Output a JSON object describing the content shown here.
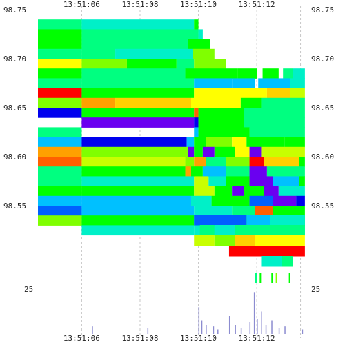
{
  "chart_data": {
    "type": "heatmap",
    "title": "",
    "xlabel": "",
    "ylabel": "",
    "x_ticks": [
      "13:51:06",
      "13:51:08",
      "13:51:10",
      "13:51:12"
    ],
    "y_ticks": [
      "98.75",
      "98.70",
      "98.65",
      "98.60",
      "98.55"
    ],
    "volume_tick": "25",
    "x_range_seconds": [
      4.55,
      13.75
    ],
    "y_range": [
      98.535,
      98.755
    ],
    "grid": true,
    "palette": [
      "#0000ee",
      "#6a00f0",
      "#0060ff",
      "#00c0ff",
      "#00f0c8",
      "#00ff80",
      "#00ff00",
      "#80ff00",
      "#c8ff00",
      "#ffff00",
      "#ffd000",
      "#ffa000",
      "#ff6000",
      "#ff0000"
    ],
    "rows": [
      {
        "price": 98.745,
        "segs": [
          [
            4.55,
            6.05,
            5
          ],
          [
            6.05,
            9.9,
            4
          ],
          [
            9.9,
            10.05,
            6
          ]
        ]
      },
      {
        "price": 98.735,
        "segs": [
          [
            4.55,
            6.05,
            6
          ],
          [
            6.05,
            10.05,
            5
          ],
          [
            10.05,
            10.2,
            4
          ]
        ]
      },
      {
        "price": 98.725,
        "segs": [
          [
            4.55,
            6.05,
            6
          ],
          [
            6.05,
            9.7,
            5
          ],
          [
            9.7,
            10.45,
            6
          ]
        ]
      },
      {
        "price": 98.715,
        "segs": [
          [
            4.55,
            6.05,
            5
          ],
          [
            6.05,
            7.2,
            5
          ],
          [
            7.2,
            9.85,
            4
          ],
          [
            9.85,
            10.6,
            7
          ]
        ]
      },
      {
        "price": 98.705,
        "segs": [
          [
            4.55,
            6.05,
            9
          ],
          [
            6.05,
            7.6,
            7
          ],
          [
            7.6,
            9.3,
            6
          ],
          [
            9.3,
            9.9,
            5
          ],
          [
            9.9,
            11.0,
            7
          ]
        ]
      },
      {
        "price": 98.695,
        "segs": [
          [
            4.55,
            6.05,
            6
          ],
          [
            6.05,
            9.6,
            5
          ],
          [
            9.6,
            11.4,
            6
          ],
          [
            11.4,
            12.05,
            6
          ],
          [
            12.25,
            12.8,
            6
          ],
          [
            12.95,
            13.3,
            5
          ],
          [
            13.3,
            13.7,
            4
          ]
        ]
      },
      {
        "price": 98.685,
        "segs": [
          [
            4.55,
            6.05,
            5
          ],
          [
            6.05,
            9.9,
            5
          ],
          [
            9.9,
            11.2,
            3
          ],
          [
            11.2,
            12.0,
            3
          ],
          [
            12.1,
            13.2,
            3
          ],
          [
            13.2,
            13.7,
            4
          ]
        ]
      },
      {
        "price": 98.675,
        "segs": [
          [
            4.55,
            6.05,
            13
          ],
          [
            6.05,
            9.9,
            6
          ],
          [
            9.9,
            11.3,
            9
          ],
          [
            11.3,
            12.4,
            9
          ],
          [
            12.4,
            13.2,
            10
          ],
          [
            13.2,
            13.7,
            8
          ]
        ]
      },
      {
        "price": 98.665,
        "segs": [
          [
            4.55,
            6.05,
            7
          ],
          [
            6.05,
            7.2,
            11
          ],
          [
            7.2,
            9.8,
            10
          ],
          [
            9.8,
            11.5,
            9
          ],
          [
            11.5,
            12.2,
            6
          ],
          [
            12.2,
            13.7,
            5
          ]
        ]
      },
      {
        "price": 98.655,
        "segs": [
          [
            4.55,
            6.05,
            0
          ],
          [
            6.05,
            9.9,
            6
          ],
          [
            9.9,
            10.05,
            12
          ],
          [
            10.05,
            11.6,
            6
          ],
          [
            11.6,
            12.6,
            5
          ],
          [
            12.6,
            13.7,
            5
          ]
        ]
      },
      {
        "price": 98.645,
        "segs": [
          [
            6.05,
            9.9,
            1
          ],
          [
            9.9,
            10.05,
            0
          ],
          [
            10.05,
            11.6,
            6
          ],
          [
            11.6,
            13.7,
            5
          ]
        ]
      },
      {
        "price": 98.635,
        "segs": [
          [
            4.55,
            6.05,
            5
          ],
          [
            9.9,
            10.05,
            3
          ],
          [
            10.05,
            11.8,
            6
          ],
          [
            11.8,
            13.7,
            5
          ]
        ]
      },
      {
        "price": 98.625,
        "segs": [
          [
            4.55,
            6.05,
            3
          ],
          [
            6.05,
            9.65,
            0
          ],
          [
            9.65,
            9.9,
            3
          ],
          [
            9.9,
            10.3,
            6
          ],
          [
            10.3,
            11.2,
            7
          ],
          [
            11.2,
            11.7,
            9
          ],
          [
            11.7,
            13.0,
            6
          ],
          [
            13.0,
            13.7,
            6
          ]
        ]
      },
      {
        "price": 98.615,
        "segs": [
          [
            4.55,
            6.05,
            11
          ],
          [
            6.05,
            9.7,
            7
          ],
          [
            9.7,
            9.9,
            1
          ],
          [
            9.9,
            10.2,
            6
          ],
          [
            10.2,
            10.6,
            1
          ],
          [
            10.6,
            11.3,
            6
          ],
          [
            11.3,
            11.8,
            9
          ],
          [
            11.8,
            12.2,
            1
          ],
          [
            12.2,
            13.7,
            8
          ]
        ]
      },
      {
        "price": 98.605,
        "segs": [
          [
            4.55,
            6.05,
            12
          ],
          [
            6.05,
            9.6,
            8
          ],
          [
            9.6,
            9.9,
            7
          ],
          [
            9.9,
            10.3,
            11
          ],
          [
            10.3,
            11.0,
            5
          ],
          [
            11.0,
            11.8,
            7
          ],
          [
            11.8,
            12.3,
            13
          ],
          [
            12.3,
            13.5,
            10
          ],
          [
            13.5,
            13.7,
            6
          ]
        ]
      },
      {
        "price": 98.595,
        "segs": [
          [
            4.55,
            6.05,
            5
          ],
          [
            6.05,
            9.6,
            6
          ],
          [
            9.6,
            9.8,
            11
          ],
          [
            9.8,
            10.2,
            6
          ],
          [
            10.2,
            11.0,
            3
          ],
          [
            11.0,
            11.8,
            5
          ],
          [
            11.8,
            12.4,
            1
          ],
          [
            12.4,
            13.7,
            5
          ]
        ]
      },
      {
        "price": 98.585,
        "segs": [
          [
            4.55,
            6.05,
            5
          ],
          [
            6.05,
            9.9,
            4
          ],
          [
            9.9,
            10.4,
            8
          ],
          [
            10.4,
            11.0,
            4
          ],
          [
            11.0,
            11.8,
            6
          ],
          [
            11.8,
            12.6,
            1
          ],
          [
            12.6,
            13.5,
            3
          ],
          [
            13.5,
            13.7,
            6
          ]
        ]
      },
      {
        "price": 98.575,
        "segs": [
          [
            4.55,
            6.05,
            6
          ],
          [
            6.05,
            9.9,
            6
          ],
          [
            9.9,
            10.6,
            8
          ],
          [
            10.6,
            11.2,
            6
          ],
          [
            11.2,
            11.6,
            1
          ],
          [
            11.6,
            12.3,
            6
          ],
          [
            12.3,
            12.8,
            1
          ],
          [
            12.8,
            13.7,
            4
          ]
        ]
      },
      {
        "price": 98.565,
        "segs": [
          [
            4.55,
            6.05,
            3
          ],
          [
            6.05,
            9.8,
            3
          ],
          [
            9.8,
            10.5,
            4
          ],
          [
            10.5,
            11.8,
            6
          ],
          [
            11.8,
            12.6,
            2
          ],
          [
            12.6,
            13.4,
            1
          ],
          [
            13.4,
            13.7,
            0
          ]
        ]
      },
      {
        "price": 98.555,
        "segs": [
          [
            4.55,
            6.05,
            2
          ],
          [
            6.05,
            9.9,
            3
          ],
          [
            9.9,
            11.2,
            4
          ],
          [
            11.2,
            12.0,
            5
          ],
          [
            12.0,
            12.6,
            12
          ],
          [
            12.6,
            13.7,
            6
          ]
        ]
      },
      {
        "price": 98.545,
        "segs": [
          [
            4.55,
            6.05,
            7
          ],
          [
            6.05,
            9.9,
            6
          ],
          [
            9.9,
            11.0,
            5
          ],
          [
            11.0,
            11.8,
            6
          ],
          [
            11.8,
            12.6,
            13
          ],
          [
            12.6,
            13.7,
            6
          ]
        ]
      },
      {
        "price": 98.535,
        "segs": [
          [
            6.05,
            9.9,
            4
          ],
          [
            9.9,
            11.5,
            4
          ],
          [
            11.5,
            12.4,
            4
          ],
          [
            12.4,
            13.7,
            4
          ]
        ]
      }
    ],
    "lower_rows": [
      {
        "level": 0,
        "segs": [
          [
            9.9,
            11.7,
            2
          ],
          [
            11.7,
            12.5,
            3
          ],
          [
            12.5,
            13.7,
            4
          ]
        ]
      },
      {
        "level": 1,
        "segs": [
          [
            10.1,
            10.6,
            5
          ],
          [
            10.6,
            11.3,
            4
          ],
          [
            11.3,
            13.7,
            5
          ]
        ]
      },
      {
        "level": 2,
        "segs": [
          [
            9.9,
            10.6,
            8
          ],
          [
            10.6,
            11.3,
            7
          ],
          [
            11.3,
            12.0,
            10
          ],
          [
            12.0,
            13.7,
            9
          ]
        ]
      },
      {
        "level": 3,
        "segs": [
          [
            11.1,
            13.7,
            13
          ]
        ]
      },
      {
        "level": 4,
        "segs": [
          [
            12.2,
            12.9,
            4
          ],
          [
            12.9,
            13.3,
            5
          ]
        ]
      }
    ],
    "volume": [
      {
        "t": 6.4,
        "v": 5
      },
      {
        "t": 8.3,
        "v": 4
      },
      {
        "t": 10.05,
        "v": 18
      },
      {
        "t": 10.15,
        "v": 9
      },
      {
        "t": 10.3,
        "v": 6
      },
      {
        "t": 10.55,
        "v": 5
      },
      {
        "t": 10.7,
        "v": 3
      },
      {
        "t": 11.1,
        "v": 12
      },
      {
        "t": 11.3,
        "v": 6
      },
      {
        "t": 11.5,
        "v": 4
      },
      {
        "t": 11.8,
        "v": 8
      },
      {
        "t": 11.95,
        "v": 28
      },
      {
        "t": 12.05,
        "v": 10
      },
      {
        "t": 12.2,
        "v": 15
      },
      {
        "t": 12.35,
        "v": 6
      },
      {
        "t": 12.55,
        "v": 9
      },
      {
        "t": 12.8,
        "v": 4
      },
      {
        "t": 13.0,
        "v": 5
      },
      {
        "t": 13.6,
        "v": 3
      }
    ],
    "volume_max": 30
  }
}
